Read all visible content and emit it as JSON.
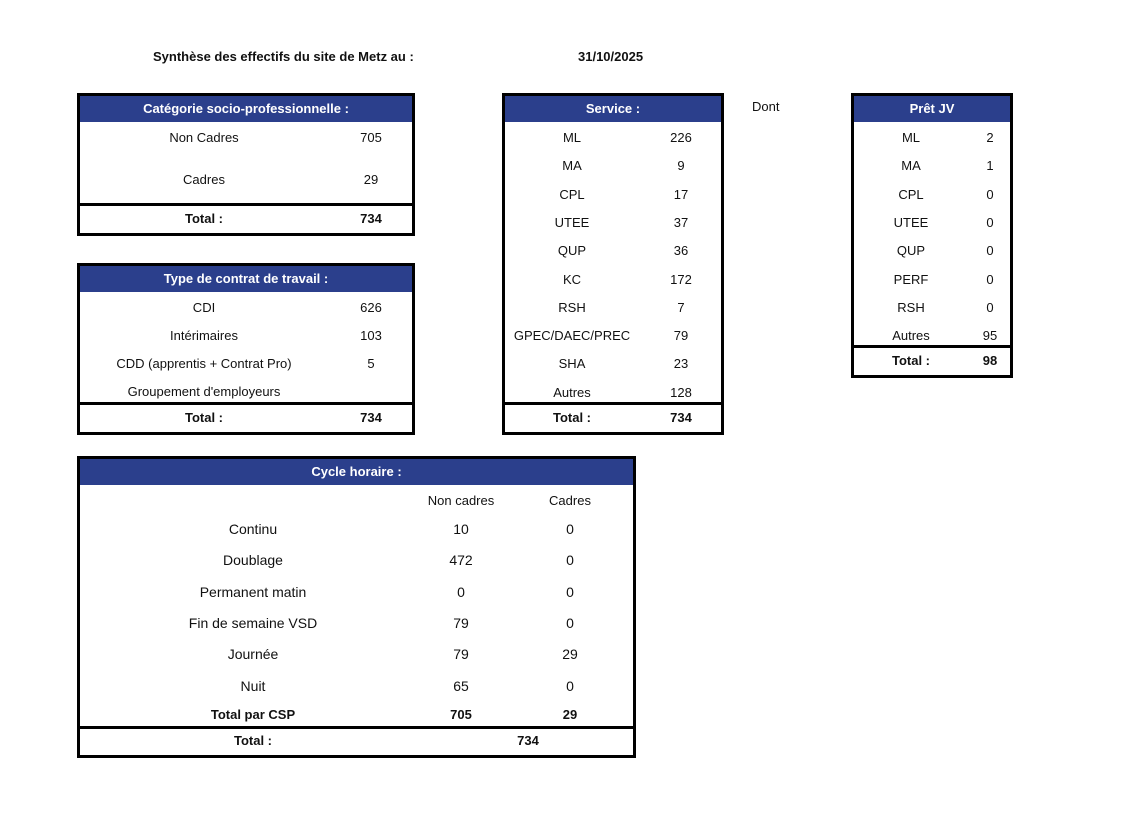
{
  "title": "Synthèse des effectifs du site de Metz au :",
  "date": "31/10/2025",
  "dont_label": "Dont",
  "csp": {
    "header": "Catégorie socio-professionnelle :",
    "rows": [
      {
        "label": "Non Cadres",
        "value": "705"
      },
      {
        "label": "Cadres",
        "value": "29"
      }
    ],
    "total_label": "Total :",
    "total_value": "734"
  },
  "contrat": {
    "header": "Type de contrat de travail :",
    "rows": [
      {
        "label": "CDI",
        "value": "626"
      },
      {
        "label": "Intérimaires",
        "value": "103"
      },
      {
        "label": "CDD (apprentis + Contrat Pro)",
        "value": "5"
      },
      {
        "label": "Groupement d'employeurs",
        "value": ""
      }
    ],
    "total_label": "Total :",
    "total_value": "734"
  },
  "service": {
    "header": "Service :",
    "rows": [
      {
        "label": "ML",
        "value": "226"
      },
      {
        "label": "MA",
        "value": "9"
      },
      {
        "label": "CPL",
        "value": "17"
      },
      {
        "label": "UTEE",
        "value": "37"
      },
      {
        "label": "QUP",
        "value": "36"
      },
      {
        "label": "KC",
        "value": "172"
      },
      {
        "label": "RSH",
        "value": "7"
      },
      {
        "label": "GPEC/DAEC/PREC",
        "value": "79"
      },
      {
        "label": "SHA",
        "value": "23"
      },
      {
        "label": "Autres",
        "value": "128"
      }
    ],
    "total_label": "Total :",
    "total_value": "734"
  },
  "pret": {
    "header": "Prêt JV",
    "rows": [
      {
        "label": "ML",
        "value": "2"
      },
      {
        "label": "MA",
        "value": "1"
      },
      {
        "label": "CPL",
        "value": "0"
      },
      {
        "label": "UTEE",
        "value": "0"
      },
      {
        "label": "QUP",
        "value": "0"
      },
      {
        "label": "PERF",
        "value": "0"
      },
      {
        "label": "RSH",
        "value": "0"
      },
      {
        "label": "Autres",
        "value": "95"
      }
    ],
    "total_label": "Total :",
    "total_value": "98"
  },
  "cycle": {
    "header": "Cycle horaire :",
    "col_non_cadres": "Non cadres",
    "col_cadres": "Cadres",
    "rows": [
      {
        "label": "Continu",
        "nc": "10",
        "c": "0"
      },
      {
        "label": "Doublage",
        "nc": "472",
        "c": "0"
      },
      {
        "label": "Permanent matin",
        "nc": "0",
        "c": "0"
      },
      {
        "label": "Fin de semaine VSD",
        "nc": "79",
        "c": "0"
      },
      {
        "label": "Journée",
        "nc": "79",
        "c": "29"
      },
      {
        "label": "Nuit",
        "nc": "65",
        "c": "0"
      }
    ],
    "csp_total_label": "Total par CSP",
    "csp_total_nc": "705",
    "csp_total_c": "29",
    "total_label": "Total :",
    "total_value": "734"
  }
}
